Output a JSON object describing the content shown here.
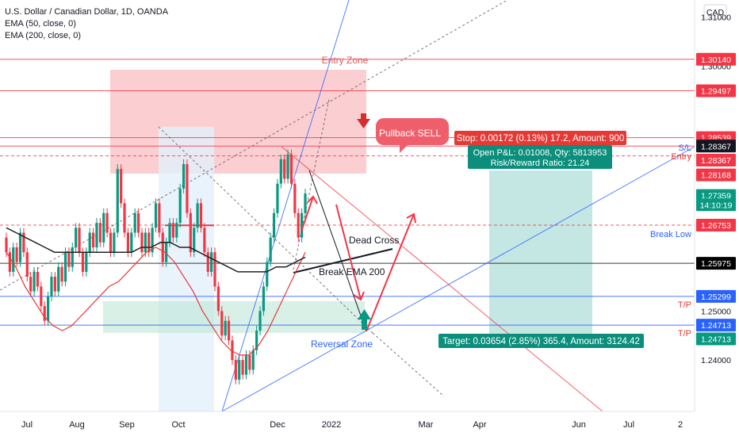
{
  "legend": {
    "symbol": "U.S. Dollar / Canadian Dollar, 1D, OANDA",
    "ema50": "EMA (50, close, 0)",
    "ema200": "EMA (200, close, 0)"
  },
  "currency": "CAD",
  "colors": {
    "red": "#f23645",
    "green": "#089981",
    "blue": "#2962ff",
    "black": "#131722",
    "zone_red": "#f7a8ac",
    "zone_green": "#b9e4d3",
    "target_fill": "#b2dfdb"
  },
  "chart_data": {
    "type": "candlestick",
    "x_ticks": [
      "Jul",
      "Aug",
      "Sep",
      "Oct",
      "Dec",
      "2022",
      "Mar",
      "Apr",
      "Jun",
      "Jul",
      "2"
    ],
    "y_ticks": [
      "1.31000",
      "1.30000",
      "1.25000",
      "1.24000"
    ],
    "ylim": [
      1.2295,
      1.3135
    ],
    "price_tags": [
      {
        "text": "1.30140",
        "price": 1.3014,
        "style": "red"
      },
      {
        "text": "1.29497",
        "price": 1.29497,
        "style": "red"
      },
      {
        "text": "1.28539",
        "price": 1.28539,
        "style": "red"
      },
      {
        "text": "1.28539",
        "price": 1.2838,
        "style": "red"
      },
      {
        "text": "1.28367",
        "price": 1.28367,
        "style": "dark"
      },
      {
        "text": "1.28367",
        "price": 1.2808,
        "style": "red"
      },
      {
        "text": "1.28168",
        "price": 1.2778,
        "style": "red"
      },
      {
        "text": "1.27359",
        "price": 1.27359,
        "style": "green"
      },
      {
        "text": "14:10:19",
        "price": 1.2717,
        "style": "green"
      },
      {
        "text": "1.26753",
        "price": 1.26753,
        "style": "red"
      },
      {
        "text": "1.25975",
        "price": 1.25975,
        "style": "black"
      },
      {
        "text": "1.25299",
        "price": 1.25299,
        "style": "blue"
      },
      {
        "text": "1.24713",
        "price": 1.24713,
        "style": "blue"
      },
      {
        "text": "1.24713",
        "price": 1.2443,
        "style": "green"
      }
    ],
    "annotations": {
      "entry_zone": "Entry Zone",
      "pullback": "Pullback SELL",
      "stop": "Stop: 0.00172 (0.13%) 17.2, Amount: 900",
      "open_pl": "Open P&L: 0.01008, Qty: 5813953",
      "risk_reward": "Risk/Reward Ratio: 21.24",
      "target": "Target: 0.03654 (2.85%) 365.4, Amount: 3124.42",
      "dead_cross": "Dead Cross",
      "break_ema": "Break EMA 200",
      "reversal_zone": "Reversal Zone",
      "sl": "S/L",
      "entry": "Entry",
      "break_low": "Break Low",
      "tp1": "T/P",
      "tp2": "T/P"
    },
    "horizontal_levels": [
      1.3014,
      1.29497,
      1.28539,
      1.28367,
      1.28168,
      1.26753,
      1.25975,
      1.25299,
      1.24713
    ],
    "ema50_series": [
      1.262,
      1.259,
      1.255,
      1.252,
      1.249,
      1.247,
      1.246,
      1.247,
      1.249,
      1.251,
      1.253,
      1.255,
      1.256,
      1.258,
      1.26,
      1.262,
      1.263,
      1.262,
      1.26,
      1.257,
      1.254,
      1.25,
      1.247,
      1.244,
      1.242,
      1.241,
      1.241,
      1.243,
      1.246,
      1.25,
      1.254,
      1.258,
      1.262
    ],
    "ema200_series": [
      1.267,
      1.266,
      1.265,
      1.264,
      1.263,
      1.262,
      1.262,
      1.262,
      1.262,
      1.262,
      1.262,
      1.262,
      1.262,
      1.262,
      1.263,
      1.263,
      1.264,
      1.264,
      1.263,
      1.263,
      1.262,
      1.261,
      1.26,
      1.259,
      1.258,
      1.258,
      1.258,
      1.258,
      1.259,
      1.259,
      1.26,
      1.261
    ],
    "candles": [
      [
        1.265,
        1.262
      ],
      [
        1.262,
        1.258
      ],
      [
        1.258,
        1.263
      ],
      [
        1.263,
        1.26
      ],
      [
        1.26,
        1.266
      ],
      [
        1.266,
        1.262
      ],
      [
        1.262,
        1.257
      ],
      [
        1.257,
        1.254
      ],
      [
        1.254,
        1.258
      ],
      [
        1.258,
        1.255
      ],
      [
        1.255,
        1.251
      ],
      [
        1.251,
        1.248
      ],
      [
        1.248,
        1.253
      ],
      [
        1.253,
        1.257
      ],
      [
        1.257,
        1.254
      ],
      [
        1.254,
        1.259
      ],
      [
        1.259,
        1.256
      ],
      [
        1.256,
        1.262
      ],
      [
        1.262,
        1.259
      ],
      [
        1.259,
        1.263
      ],
      [
        1.263,
        1.267
      ],
      [
        1.267,
        1.262
      ],
      [
        1.262,
        1.258
      ],
      [
        1.258,
        1.262
      ],
      [
        1.262,
        1.266
      ],
      [
        1.266,
        1.263
      ],
      [
        1.263,
        1.268
      ],
      [
        1.268,
        1.264
      ],
      [
        1.264,
        1.27
      ],
      [
        1.27,
        1.266
      ],
      [
        1.266,
        1.262
      ],
      [
        1.262,
        1.266
      ],
      [
        1.266,
        1.279
      ],
      [
        1.279,
        1.272
      ],
      [
        1.272,
        1.266
      ],
      [
        1.266,
        1.262
      ],
      [
        1.262,
        1.266
      ],
      [
        1.266,
        1.27
      ],
      [
        1.27,
        1.266
      ],
      [
        1.266,
        1.262
      ],
      [
        1.262,
        1.266
      ],
      [
        1.266,
        1.262
      ],
      [
        1.262,
        1.267
      ],
      [
        1.267,
        1.272
      ],
      [
        1.272,
        1.266
      ],
      [
        1.266,
        1.26
      ],
      [
        1.26,
        1.264
      ],
      [
        1.264,
        1.268
      ],
      [
        1.268,
        1.265
      ],
      [
        1.265,
        1.268
      ],
      [
        1.268,
        1.275
      ],
      [
        1.275,
        1.28
      ],
      [
        1.28,
        1.27
      ],
      [
        1.27,
        1.262
      ],
      [
        1.262,
        1.267
      ],
      [
        1.267,
        1.272
      ],
      [
        1.272,
        1.267
      ],
      [
        1.267,
        1.262
      ],
      [
        1.262,
        1.258
      ],
      [
        1.258,
        1.262
      ],
      [
        1.262,
        1.255
      ],
      [
        1.255,
        1.25
      ],
      [
        1.25,
        1.245
      ],
      [
        1.245,
        1.248
      ],
      [
        1.248,
        1.244
      ],
      [
        1.244,
        1.24
      ],
      [
        1.24,
        1.236
      ],
      [
        1.236,
        1.24
      ],
      [
        1.24,
        1.237
      ],
      [
        1.237,
        1.241
      ],
      [
        1.241,
        1.238
      ],
      [
        1.238,
        1.242
      ],
      [
        1.242,
        1.246
      ],
      [
        1.246,
        1.25
      ],
      [
        1.25,
        1.255
      ],
      [
        1.255,
        1.26
      ],
      [
        1.26,
        1.265
      ],
      [
        1.265,
        1.27
      ],
      [
        1.27,
        1.276
      ],
      [
        1.276,
        1.281
      ],
      [
        1.281,
        1.277
      ],
      [
        1.277,
        1.282
      ],
      [
        1.282,
        1.276
      ],
      [
        1.276,
        1.27
      ],
      [
        1.27,
        1.265
      ],
      [
        1.265,
        1.27
      ],
      [
        1.27,
        1.274
      ]
    ]
  }
}
